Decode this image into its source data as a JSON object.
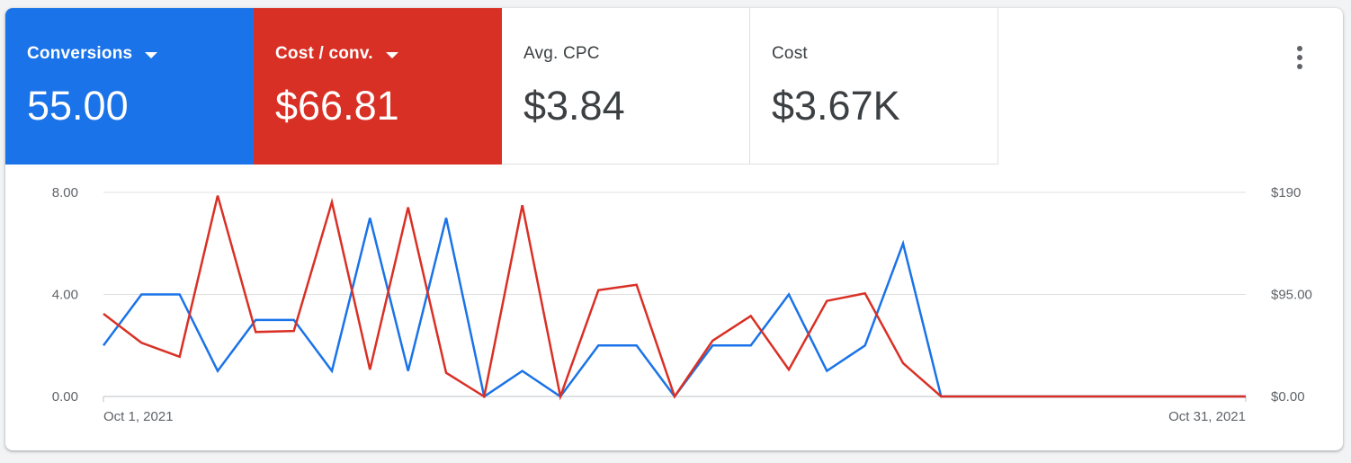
{
  "colors": {
    "conversions": "#1a73e8",
    "cost_per_conv": "#d93025",
    "grid": "#e0e0e0"
  },
  "metrics": [
    {
      "label": "Conversions",
      "value": "55.00",
      "dropdown": true
    },
    {
      "label": "Cost / conv.",
      "value": "$66.81",
      "dropdown": true
    },
    {
      "label": "Avg. CPC",
      "value": "$3.84",
      "dropdown": false
    },
    {
      "label": "Cost",
      "value": "$3.67K",
      "dropdown": false
    }
  ],
  "menu_icon": "more-vert-icon",
  "chart_data": {
    "type": "line",
    "x": [
      "Oct 1",
      "Oct 2",
      "Oct 3",
      "Oct 4",
      "Oct 5",
      "Oct 6",
      "Oct 7",
      "Oct 8",
      "Oct 9",
      "Oct 10",
      "Oct 11",
      "Oct 12",
      "Oct 13",
      "Oct 14",
      "Oct 15",
      "Oct 16",
      "Oct 17",
      "Oct 18",
      "Oct 19",
      "Oct 20",
      "Oct 21",
      "Oct 22",
      "Oct 23",
      "Oct 24",
      "Oct 25",
      "Oct 26",
      "Oct 27",
      "Oct 28",
      "Oct 29",
      "Oct 30",
      "Oct 31"
    ],
    "x_tick_labels": [
      "Oct 1, 2021",
      "Oct 31, 2021"
    ],
    "y_left": {
      "ticks": [
        "8.00",
        "4.00",
        "0.00"
      ],
      "range": [
        0,
        8
      ]
    },
    "y_right": {
      "ticks": [
        "$190",
        "$95.00",
        "$0.00"
      ],
      "range": [
        0,
        190
      ]
    },
    "grid": true,
    "series": [
      {
        "name": "Conversions",
        "axis": "left",
        "values": [
          2,
          4,
          4,
          1,
          3,
          3,
          1,
          7,
          1,
          7,
          0,
          1,
          0,
          2,
          2,
          0,
          2,
          2,
          4,
          1,
          2,
          6,
          0,
          0,
          0,
          0,
          0,
          0,
          0,
          0,
          0
        ]
      },
      {
        "name": "Cost / conv.",
        "axis": "right",
        "values": [
          77,
          50,
          37,
          187,
          60,
          61,
          181,
          25,
          176,
          22,
          0,
          178,
          0,
          99,
          104,
          0,
          52,
          75,
          25,
          89,
          96,
          31,
          0,
          0,
          0,
          0,
          0,
          0,
          0,
          0,
          0
        ]
      }
    ]
  }
}
